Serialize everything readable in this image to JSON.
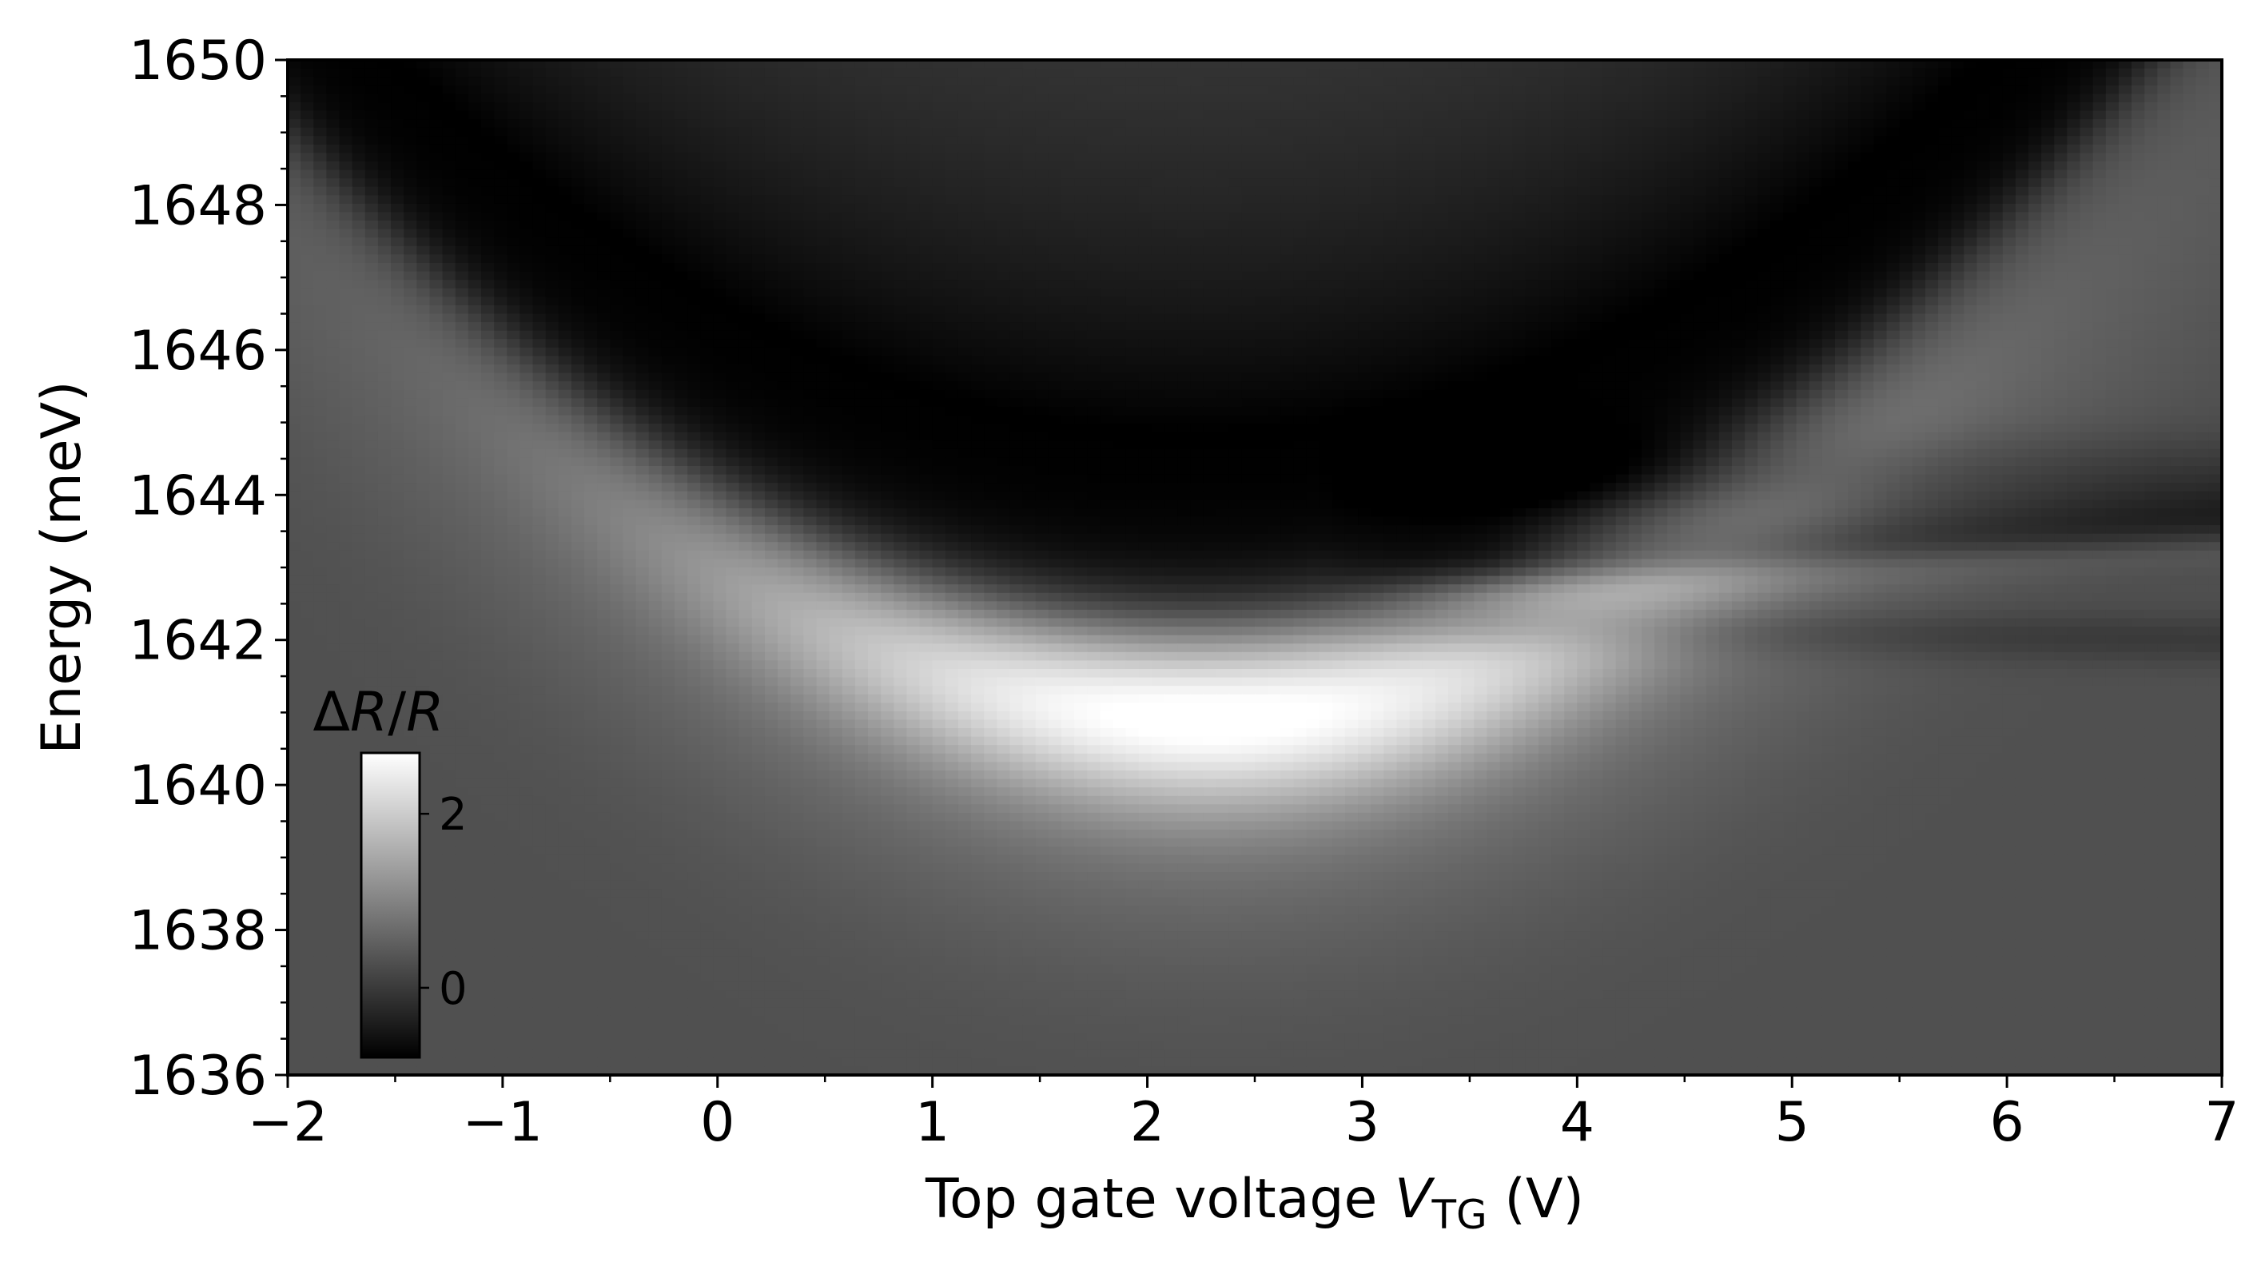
{
  "chart_data": {
    "type": "heatmap",
    "title": "",
    "xlabel": {
      "prefix": "Top gate voltage ",
      "symbol": "V",
      "subscript": "TG",
      "suffix": " (V)"
    },
    "ylabel": "Energy (meV)",
    "xlim": [
      -2,
      7
    ],
    "ylim": [
      1636,
      1650
    ],
    "xticks": [
      -2,
      -1,
      0,
      1,
      2,
      3,
      4,
      5,
      6,
      7
    ],
    "xtick_labels": [
      "−2",
      "−1",
      "0",
      "1",
      "2",
      "3",
      "4",
      "5",
      "6",
      "7"
    ],
    "yticks": [
      1636,
      1638,
      1640,
      1642,
      1644,
      1646,
      1648,
      1650
    ],
    "ytick_labels": [
      "1636",
      "1638",
      "1640",
      "1642",
      "1644",
      "1646",
      "1648",
      "1650"
    ],
    "colormap": "gray",
    "colorbar": {
      "label": {
        "prefix": "Δ",
        "symbol1": "R",
        "sep": "/",
        "symbol2": "R"
      },
      "range": [
        -0.8,
        2.7
      ],
      "ticks": [
        0,
        2
      ],
      "tick_labels": [
        "0",
        "2"
      ],
      "placement": "lower-left inset"
    },
    "features": [
      {
        "name": "absorption dip (dark)",
        "shape": "parabola",
        "vertex": [
          2.2,
          1642.4
        ],
        "curvature_meV_per_V2": 0.38,
        "peak_value": -0.8
      },
      {
        "name": "reflectance maximum (bright)",
        "shape": "parabola",
        "vertex": [
          2.3,
          1641.0
        ],
        "curvature_meV_per_V2": 0.38,
        "peak_value": 2.5
      },
      {
        "name": "split branch upper",
        "x_range": [
          3.0,
          7.0
        ],
        "energy_start": 1642.9,
        "energy_end": 1643.6,
        "value": -0.25
      },
      {
        "name": "split branch lower",
        "x_range": [
          3.0,
          7.0
        ],
        "energy_start": 1642.2,
        "energy_end": 1642.0,
        "value": 0.0
      }
    ],
    "background_value": 0.3,
    "grid": false
  }
}
